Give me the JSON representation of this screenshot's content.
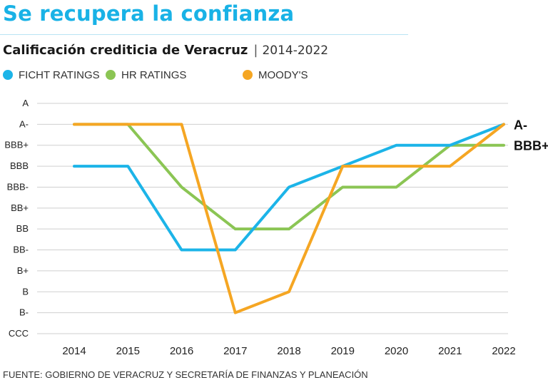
{
  "header": {
    "title": "Se recupera la confianza",
    "subtitle": "Calificación crediticia de Veracruz",
    "separator": "|",
    "years": "2014-2022"
  },
  "legend": [
    {
      "label": "FICHT RATINGS",
      "color": "#1cb4e8"
    },
    {
      "label": "HR RATINGS",
      "color": "#8bc554"
    },
    {
      "label": "MOODY'S",
      "color": "#f5a623"
    }
  ],
  "source": "FUENTE: GOBIERNO DE VERACRUZ Y SECRETARÍA DE FINANZAS Y PLANEACIÓN",
  "chart_data": {
    "type": "line",
    "title": "Calificación crediticia de Veracruz",
    "xlabel": "",
    "ylabel": "",
    "x": [
      2014,
      2015,
      2016,
      2017,
      2018,
      2019,
      2020,
      2021,
      2022
    ],
    "y_categories": [
      "CCC",
      "B-",
      "B",
      "B+",
      "BB-",
      "BB",
      "BB+",
      "BBB-",
      "BBB",
      "BBB+",
      "A-",
      "A"
    ],
    "grid": true,
    "series": [
      {
        "name": "FICHT RATINGS",
        "color": "#1cb4e8",
        "values": [
          "BBB",
          "BBB",
          "BB-",
          "BB-",
          "BBB-",
          "BBB",
          "BBB+",
          "BBB+",
          "A-"
        ]
      },
      {
        "name": "HR RATINGS",
        "color": "#8bc554",
        "values": [
          "A-",
          "A-",
          "BBB-",
          "BB",
          "BB",
          "BBB-",
          "BBB-",
          "BBB+",
          "BBB+"
        ]
      },
      {
        "name": "MOODY'S",
        "color": "#f5a623",
        "values": [
          "A-",
          "A-",
          "A-",
          "B-",
          "B",
          "BBB",
          "BBB",
          "BBB",
          "A-"
        ]
      }
    ],
    "end_labels": [
      "A-",
      "BBB+"
    ]
  }
}
